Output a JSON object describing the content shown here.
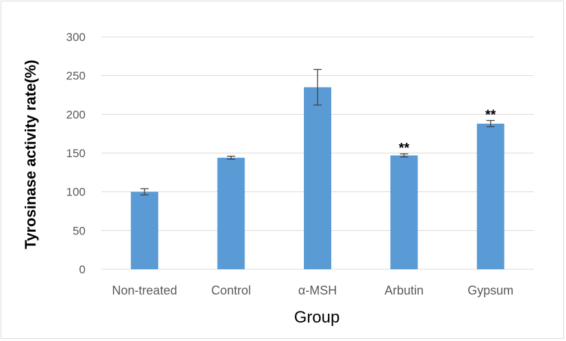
{
  "chart_data": {
    "type": "bar",
    "title": "",
    "xlabel": "Group",
    "ylabel": "Tyrosinase activity rate(%)",
    "categories": [
      "Non-treated",
      "Control",
      "α-MSH",
      "Arbutin",
      "Gypsum"
    ],
    "values": [
      100,
      144,
      235,
      147,
      188
    ],
    "errors": [
      4,
      2,
      23,
      2,
      4
    ],
    "annotations": [
      "",
      "",
      "",
      "**",
      "**"
    ],
    "ylim": [
      0,
      300
    ],
    "yticks": [
      0,
      50,
      100,
      150,
      200,
      250,
      300
    ],
    "grid": true,
    "legend": "none",
    "bar_color": "#5b9bd5",
    "grid_color": "#d9d9d9",
    "error_color": "#404040"
  }
}
